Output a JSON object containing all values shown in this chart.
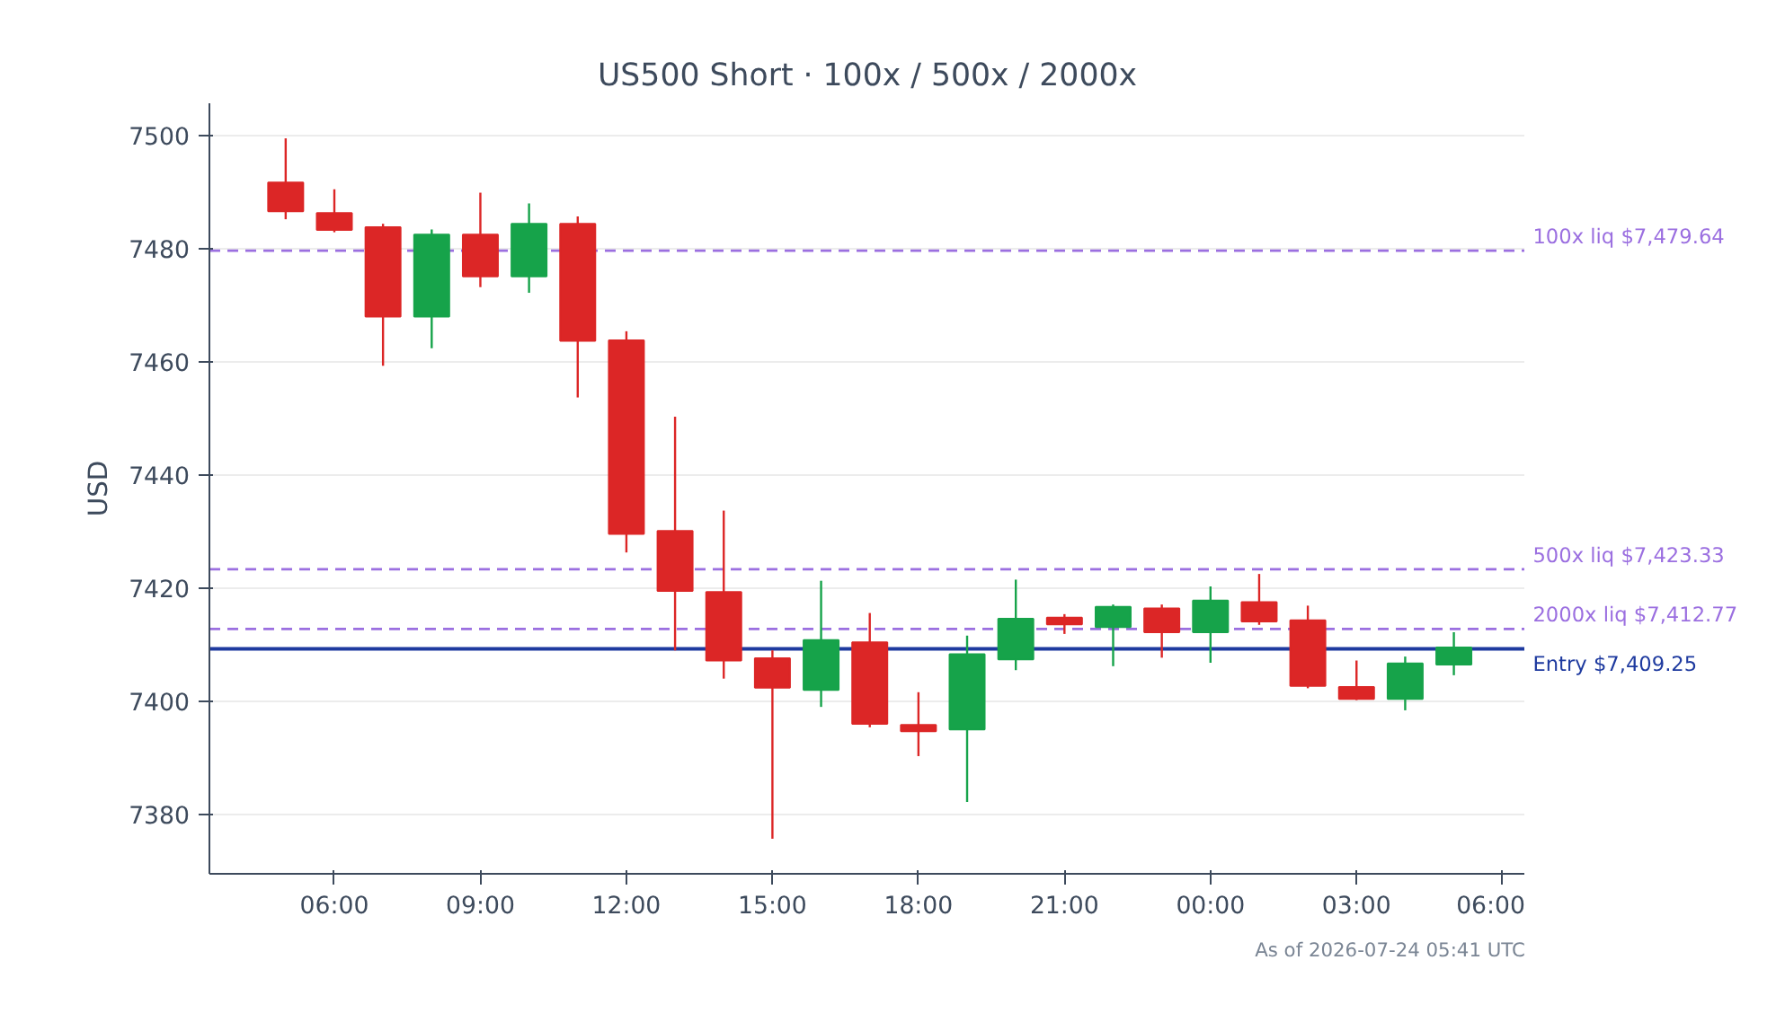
{
  "chart_data": {
    "type": "candlestick",
    "title": "US500 Short · 100x / 500x / 2000x",
    "ylabel": "USD",
    "x": [
      "2026-07-23T05:00",
      "2026-07-23T06:00",
      "2026-07-23T07:00",
      "2026-07-23T08:00",
      "2026-07-23T09:00",
      "2026-07-23T10:00",
      "2026-07-23T11:00",
      "2026-07-23T12:00",
      "2026-07-23T13:00",
      "2026-07-23T14:00",
      "2026-07-23T15:00",
      "2026-07-23T16:00",
      "2026-07-23T17:00",
      "2026-07-23T18:00",
      "2026-07-23T19:00",
      "2026-07-23T20:00",
      "2026-07-23T21:00",
      "2026-07-23T22:00",
      "2026-07-23T23:00",
      "2026-07-24T00:00",
      "2026-07-24T01:00",
      "2026-07-24T02:00",
      "2026-07-24T03:00",
      "2026-07-24T04:00",
      "2026-07-24T05:00"
    ],
    "ohlc": [
      [
        7491.7,
        7499.5,
        7485.2,
        7486.6
      ],
      [
        7486.3,
        7490.5,
        7482.9,
        7483.3
      ],
      [
        7483.8,
        7484.4,
        7459.3,
        7468.0
      ],
      [
        7468.0,
        7483.4,
        7462.4,
        7482.5
      ],
      [
        7482.5,
        7489.9,
        7473.2,
        7475.1
      ],
      [
        7475.1,
        7488.0,
        7472.2,
        7484.4
      ],
      [
        7484.4,
        7485.7,
        7453.7,
        7463.7
      ],
      [
        7463.8,
        7465.4,
        7426.3,
        7429.6
      ],
      [
        7430.1,
        7450.3,
        7409.0,
        7419.5
      ],
      [
        7419.3,
        7433.7,
        7404.0,
        7407.2
      ],
      [
        7407.6,
        7409.0,
        7375.7,
        7402.4
      ],
      [
        7402.0,
        7421.3,
        7399.0,
        7410.8
      ],
      [
        7410.4,
        7415.6,
        7395.4,
        7396.0
      ],
      [
        7395.8,
        7401.6,
        7390.3,
        7394.7
      ],
      [
        7395.0,
        7411.6,
        7382.2,
        7408.3
      ],
      [
        7407.4,
        7421.5,
        7405.5,
        7414.6
      ],
      [
        7414.8,
        7415.4,
        7411.9,
        7413.6
      ],
      [
        7413.1,
        7417.1,
        7406.2,
        7416.7
      ],
      [
        7416.4,
        7417.1,
        7407.7,
        7412.2
      ],
      [
        7412.2,
        7420.3,
        7406.8,
        7417.8
      ],
      [
        7417.5,
        7422.5,
        7413.5,
        7414.1
      ],
      [
        7414.3,
        7416.9,
        7402.3,
        7402.7
      ],
      [
        7402.5,
        7407.2,
        7400.2,
        7400.4
      ],
      [
        7400.4,
        7407.9,
        7398.4,
        7406.7
      ],
      [
        7406.5,
        7412.2,
        7404.6,
        7409.5
      ]
    ],
    "colors": [
      "#dc2626",
      "#dc2626",
      "#dc2626",
      "#16a34a",
      "#dc2626",
      "#16a34a",
      "#dc2626",
      "#dc2626",
      "#dc2626",
      "#dc2626",
      "#dc2626",
      "#16a34a",
      "#dc2626",
      "#dc2626",
      "#16a34a",
      "#16a34a",
      "#dc2626",
      "#16a34a",
      "#dc2626",
      "#16a34a",
      "#dc2626",
      "#dc2626",
      "#dc2626",
      "#16a34a",
      "#16a34a"
    ],
    "xlim": [
      "2026-07-23T03:26",
      "2026-07-24T06:28"
    ],
    "xticks": [
      {
        "value": "2026-07-23T06:00",
        "label": "06:00"
      },
      {
        "value": "2026-07-23T09:00",
        "label": "09:00"
      },
      {
        "value": "2026-07-23T12:00",
        "label": "12:00"
      },
      {
        "value": "2026-07-23T15:00",
        "label": "15:00"
      },
      {
        "value": "2026-07-23T18:00",
        "label": "18:00"
      },
      {
        "value": "2026-07-23T21:00",
        "label": "21:00"
      },
      {
        "value": "2026-07-24T00:00",
        "label": "00:00"
      },
      {
        "value": "2026-07-24T03:00",
        "label": "03:00"
      },
      {
        "value": "2026-07-24T06:00",
        "label": "06:00"
      }
    ],
    "ylim": [
      7369.5,
      7505.7
    ],
    "yticks": [
      7380,
      7400,
      7420,
      7440,
      7460,
      7480,
      7500
    ],
    "grid": "y",
    "ref_lines": [
      {
        "axis": "y",
        "value": 7479.64,
        "label": "100x liq $7,479.64",
        "color": "#9b6fe0",
        "line_style": "dashed"
      },
      {
        "axis": "y",
        "value": 7423.33,
        "label": "500x liq $7,423.33",
        "color": "#9b6fe0",
        "line_style": "dashed"
      },
      {
        "axis": "y",
        "value": 7412.77,
        "label": "2000x liq $7,412.77",
        "color": "#9b6fe0",
        "line_style": "dashed"
      },
      {
        "axis": "y",
        "value": 7409.25,
        "label": "Entry $7,409.25",
        "color": "#1e3a9f",
        "line_style": "solid"
      }
    ],
    "annotations": [
      "As of 2026-07-24 05:41 UTC"
    ]
  }
}
